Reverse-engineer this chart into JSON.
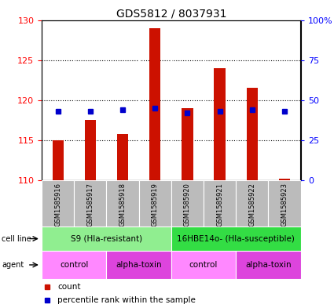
{
  "title": "GDS5812 / 8037931",
  "samples": [
    "GSM1585916",
    "GSM1585917",
    "GSM1585918",
    "GSM1585919",
    "GSM1585920",
    "GSM1585921",
    "GSM1585922",
    "GSM1585923"
  ],
  "counts": [
    115.0,
    117.5,
    115.8,
    129.0,
    119.0,
    124.0,
    121.5,
    110.2
  ],
  "percentiles": [
    43,
    43,
    44,
    45,
    42,
    43,
    44,
    43
  ],
  "count_base": 110.0,
  "ylim_left": [
    110,
    130
  ],
  "ylim_right": [
    0,
    100
  ],
  "yticks_left": [
    110,
    115,
    120,
    125,
    130
  ],
  "yticks_right": [
    0,
    25,
    50,
    75,
    100
  ],
  "cell_line_groups": [
    {
      "label": "S9 (Hla-resistant)",
      "start": 0,
      "end": 4,
      "color": "#90EE90"
    },
    {
      "label": "16HBE14o- (Hla-susceptible)",
      "start": 4,
      "end": 8,
      "color": "#33DD44"
    }
  ],
  "agent_groups": [
    {
      "label": "control",
      "start": 0,
      "end": 2,
      "color": "#FF88FF"
    },
    {
      "label": "alpha-toxin",
      "start": 2,
      "end": 4,
      "color": "#DD44DD"
    },
    {
      "label": "control",
      "start": 4,
      "end": 6,
      "color": "#FF88FF"
    },
    {
      "label": "alpha-toxin",
      "start": 6,
      "end": 8,
      "color": "#DD44DD"
    }
  ],
  "bar_color": "#CC1100",
  "dot_color": "#0000CC",
  "sample_bg_color": "#BBBBBB",
  "plot_bg_color": "#FFFFFF",
  "title_fontsize": 10,
  "bar_width": 0.35
}
